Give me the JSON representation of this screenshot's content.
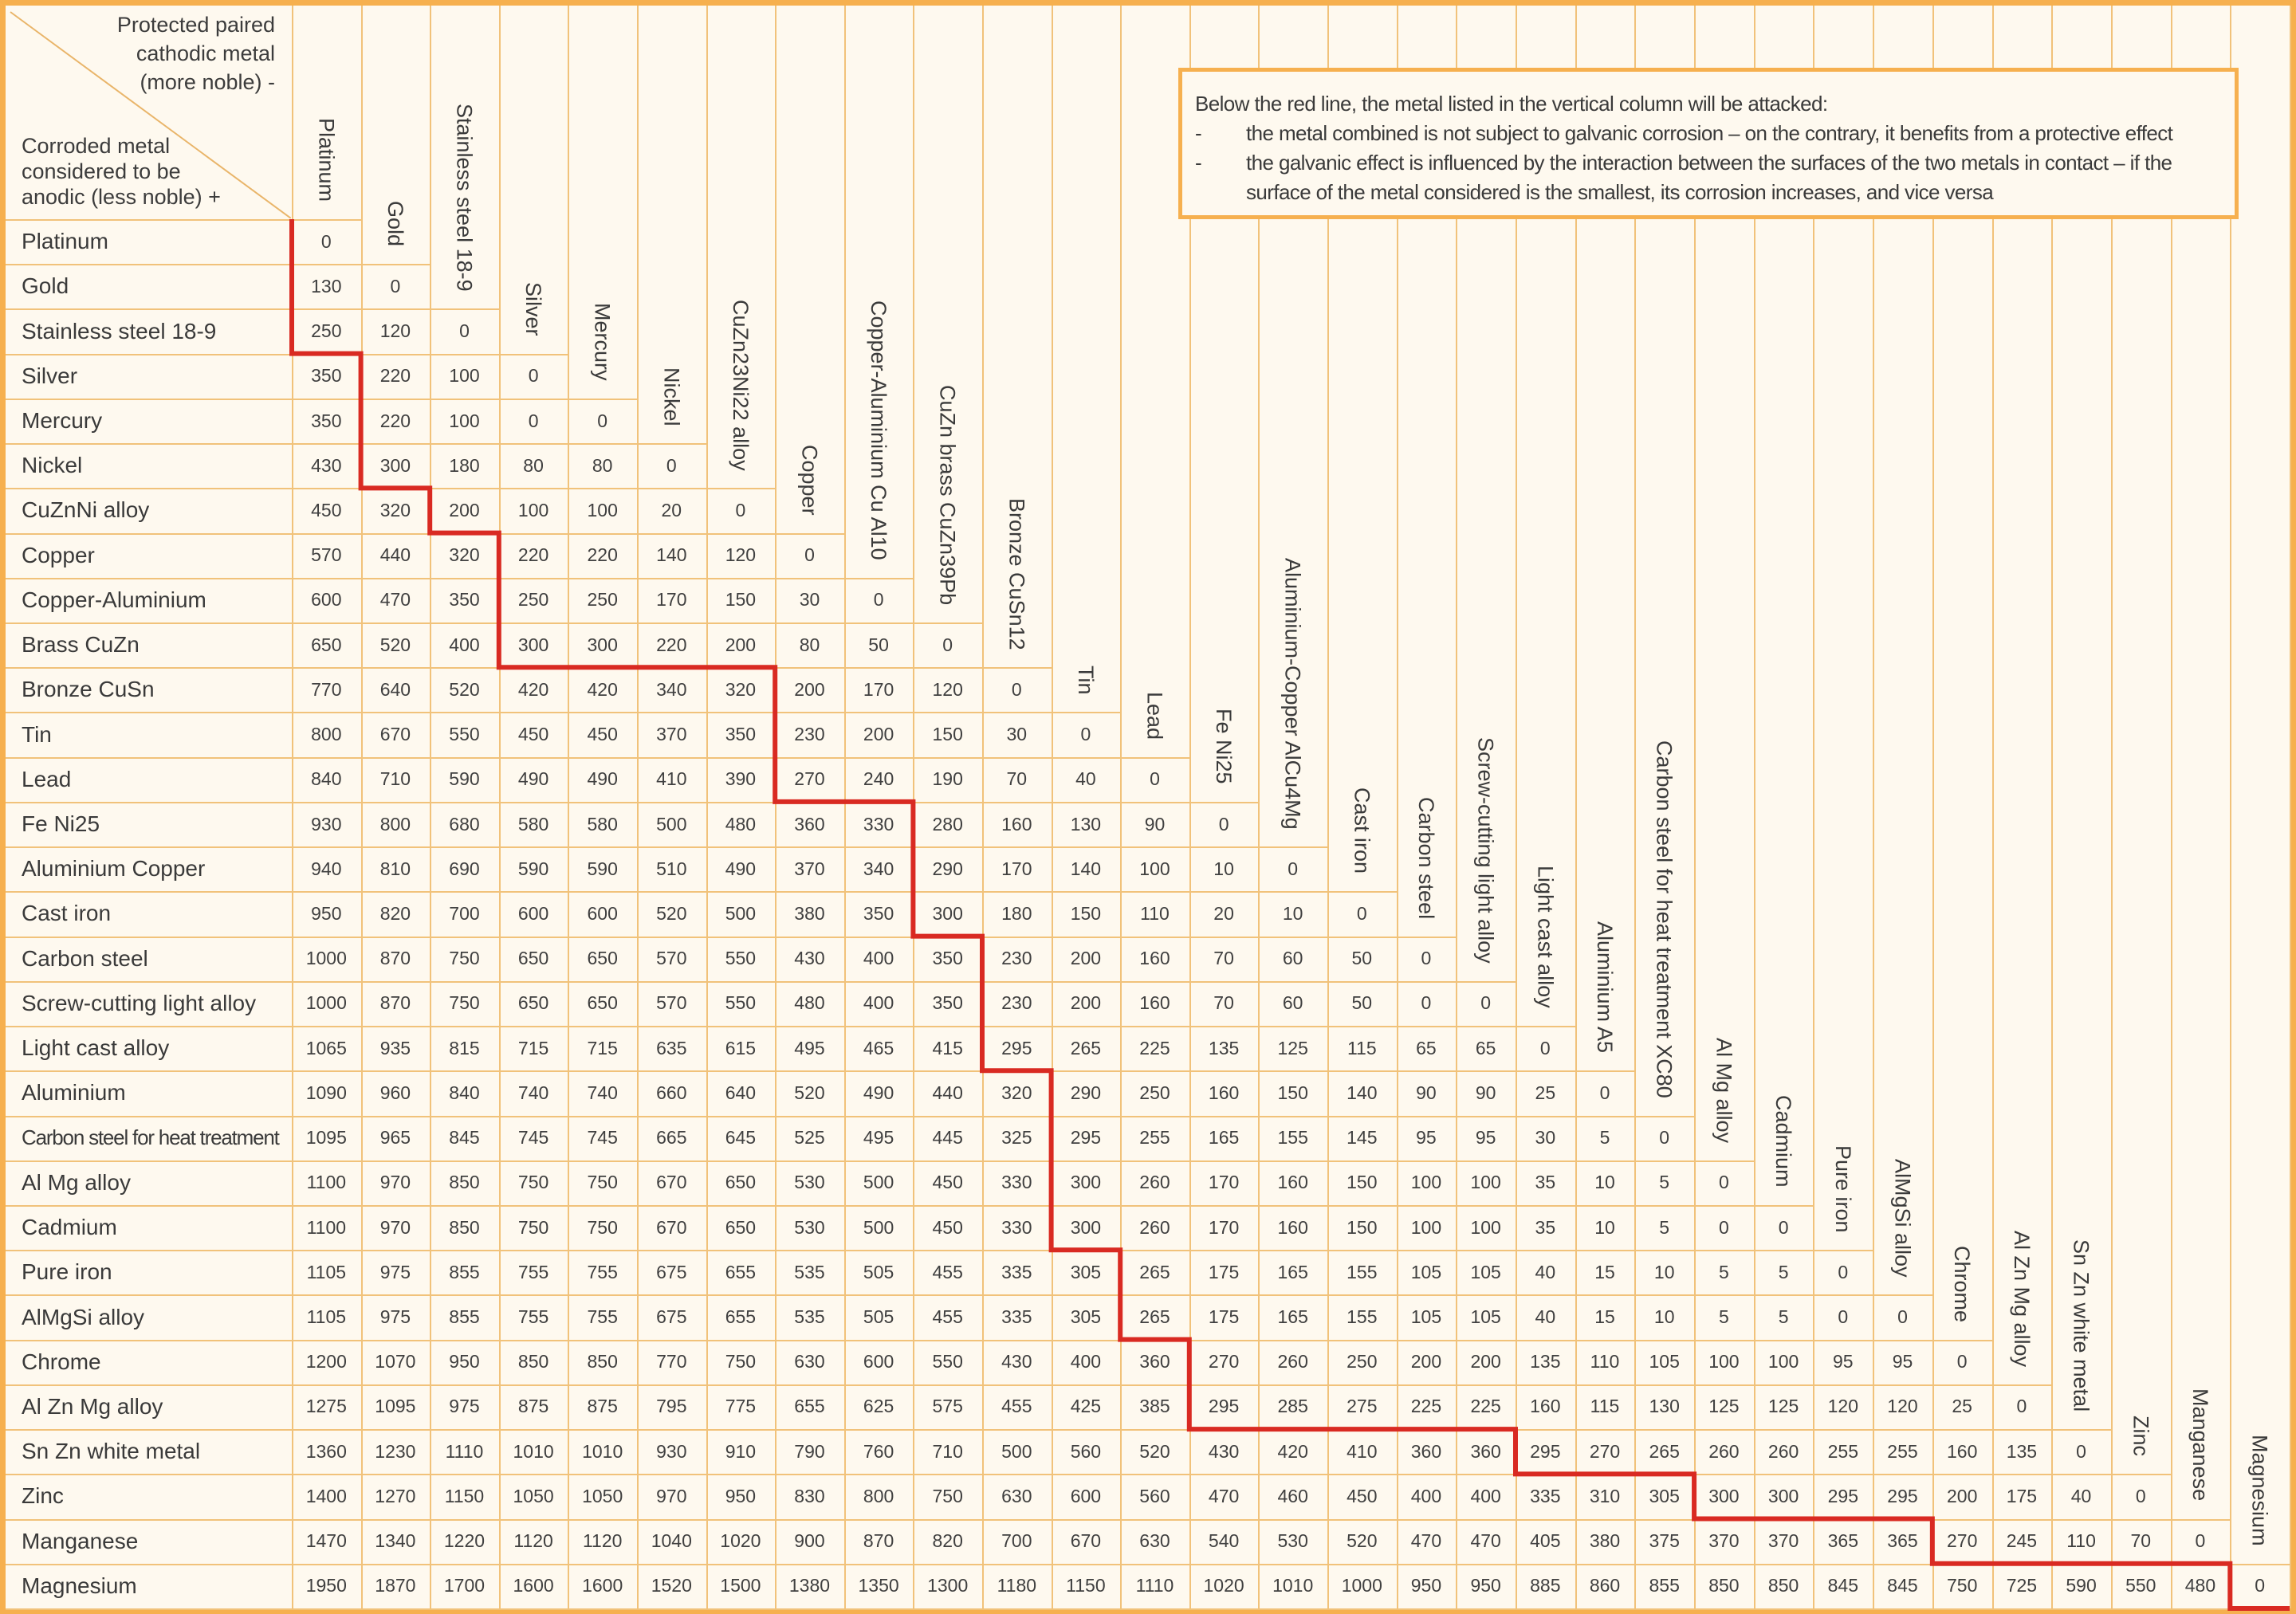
{
  "corner": {
    "top_text": [
      "Protected paired",
      "cathodic metal",
      "(more noble) -"
    ],
    "bottom_text": [
      "Corroded metal",
      "considered to be",
      "anodic (less noble) +"
    ]
  },
  "note": {
    "heading": "Below the red line, the metal listed in the vertical column will be attacked:",
    "bullets": [
      "the metal combined is not subject to galvanic corrosion – on the contrary, it benefits from a protective effect",
      "the galvanic effect is influenced by the interaction between the surfaces of the two metals in contact – if the surface of the metal considered is the smallest, its corrosion increases, and vice versa"
    ],
    "bullet_marker": "-"
  },
  "colors": {
    "border": "#f6b04f",
    "grid": "#f1c27a",
    "background": "#fef9ef",
    "red_line": "#d92a22",
    "text": "#3c3c3c"
  },
  "chart_data": {
    "type": "table",
    "title": "Galvanic corrosion potential difference between paired metals",
    "row_axis_label": "Corroded metal considered to be anodic (less noble) +",
    "column_axis_label": "Protected paired cathodic metal (more noble) -",
    "columns": [
      "Platinum",
      "Gold",
      "Stainless steel 18-9",
      "Silver",
      "Mercury",
      "Nickel",
      "CuZn23Ni22 alloy",
      "Copper",
      "Copper-Aluminium Cu Al10",
      "CuZn brass CuZn39Pb",
      "Bronze CuSn12",
      "Tin",
      "Lead",
      "Fe Ni25",
      "Aluminium-Copper AlCu4Mg",
      "Cast iron",
      "Carbon steel",
      "Screw-cutting light alloy",
      "Light cast alloy",
      "Aluminium A5",
      "Carbon steel for heat treatment XC80",
      "Al Mg alloy",
      "Cadmium",
      "Pure iron",
      "AlMgSi alloy",
      "Chrome",
      "Al Zn Mg alloy",
      "Sn Zn white metal",
      "Zinc",
      "Manganese",
      "Magnesium"
    ],
    "rows": [
      {
        "label": "Platinum",
        "values": [
          0
        ],
        "red_line_col": 0
      },
      {
        "label": "Gold",
        "values": [
          130,
          0
        ],
        "red_line_col": 0
      },
      {
        "label": "Stainless steel 18-9",
        "values": [
          250,
          120,
          0
        ],
        "red_line_col": 0
      },
      {
        "label": "Silver",
        "values": [
          350,
          220,
          100,
          0
        ],
        "red_line_col": 1
      },
      {
        "label": "Mercury",
        "values": [
          350,
          220,
          100,
          0,
          0
        ],
        "red_line_col": 1
      },
      {
        "label": "Nickel",
        "values": [
          430,
          300,
          180,
          80,
          80,
          0
        ],
        "red_line_col": 1
      },
      {
        "label": "CuZnNi alloy",
        "values": [
          450,
          320,
          200,
          100,
          100,
          20,
          0
        ],
        "red_line_col": 2
      },
      {
        "label": "Copper",
        "values": [
          570,
          440,
          320,
          220,
          220,
          140,
          120,
          0
        ],
        "red_line_col": 3
      },
      {
        "label": "Copper-Aluminium",
        "values": [
          600,
          470,
          350,
          250,
          250,
          170,
          150,
          30,
          0
        ],
        "red_line_col": 3
      },
      {
        "label": "Brass CuZn",
        "values": [
          650,
          520,
          400,
          300,
          300,
          220,
          200,
          80,
          50,
          0
        ],
        "red_line_col": 3
      },
      {
        "label": "Bronze CuSn",
        "values": [
          770,
          640,
          520,
          420,
          420,
          340,
          320,
          200,
          170,
          120,
          0
        ],
        "red_line_col": 7
      },
      {
        "label": "Tin",
        "values": [
          800,
          670,
          550,
          450,
          450,
          370,
          350,
          230,
          200,
          150,
          30,
          0
        ],
        "red_line_col": 7
      },
      {
        "label": "Lead",
        "values": [
          840,
          710,
          590,
          490,
          490,
          410,
          390,
          270,
          240,
          190,
          70,
          40,
          0
        ],
        "red_line_col": 7
      },
      {
        "label": "Fe Ni25",
        "values": [
          930,
          800,
          680,
          580,
          580,
          500,
          480,
          360,
          330,
          280,
          160,
          130,
          90,
          0
        ],
        "red_line_col": 9
      },
      {
        "label": "Aluminium Copper",
        "values": [
          940,
          810,
          690,
          590,
          590,
          510,
          490,
          370,
          340,
          290,
          170,
          140,
          100,
          10,
          0
        ],
        "red_line_col": 9
      },
      {
        "label": "Cast iron",
        "values": [
          950,
          820,
          700,
          600,
          600,
          520,
          500,
          380,
          350,
          300,
          180,
          150,
          110,
          20,
          10,
          0
        ],
        "red_line_col": 9
      },
      {
        "label": "Carbon steel",
        "values": [
          1000,
          870,
          750,
          650,
          650,
          570,
          550,
          430,
          400,
          350,
          230,
          200,
          160,
          70,
          60,
          50,
          0
        ],
        "red_line_col": 10
      },
      {
        "label": "Screw-cutting light alloy",
        "values": [
          1000,
          870,
          750,
          650,
          650,
          570,
          550,
          480,
          400,
          350,
          230,
          200,
          160,
          70,
          60,
          50,
          0,
          0
        ],
        "red_line_col": 10
      },
      {
        "label": "Light cast alloy",
        "values": [
          1065,
          935,
          815,
          715,
          715,
          635,
          615,
          495,
          465,
          415,
          295,
          265,
          225,
          135,
          125,
          115,
          65,
          65,
          0
        ],
        "red_line_col": 10
      },
      {
        "label": "Aluminium",
        "values": [
          1090,
          960,
          840,
          740,
          740,
          660,
          640,
          520,
          490,
          440,
          320,
          290,
          250,
          160,
          150,
          140,
          90,
          90,
          25,
          0
        ],
        "red_line_col": 11
      },
      {
        "label": "Carbon steel for heat treatment",
        "values": [
          1095,
          965,
          845,
          745,
          745,
          665,
          645,
          525,
          495,
          445,
          325,
          295,
          255,
          165,
          155,
          145,
          95,
          95,
          30,
          5,
          0
        ],
        "red_line_col": 11
      },
      {
        "label": "Al Mg alloy",
        "values": [
          1100,
          970,
          850,
          750,
          750,
          670,
          650,
          530,
          500,
          450,
          330,
          300,
          260,
          170,
          160,
          150,
          100,
          100,
          35,
          10,
          5,
          0
        ],
        "red_line_col": 11
      },
      {
        "label": "Cadmium",
        "values": [
          1100,
          970,
          850,
          750,
          750,
          670,
          650,
          530,
          500,
          450,
          330,
          300,
          260,
          170,
          160,
          150,
          100,
          100,
          35,
          10,
          5,
          0,
          0
        ],
        "red_line_col": 11
      },
      {
        "label": "Pure iron",
        "values": [
          1105,
          975,
          855,
          755,
          755,
          675,
          655,
          535,
          505,
          455,
          335,
          305,
          265,
          175,
          165,
          155,
          105,
          105,
          40,
          15,
          10,
          5,
          5,
          0
        ],
        "red_line_col": 12
      },
      {
        "label": "AlMgSi alloy",
        "values": [
          1105,
          975,
          855,
          755,
          755,
          675,
          655,
          535,
          505,
          455,
          335,
          305,
          265,
          175,
          165,
          155,
          105,
          105,
          40,
          15,
          10,
          5,
          5,
          0,
          0
        ],
        "red_line_col": 12
      },
      {
        "label": "Chrome",
        "values": [
          1200,
          1070,
          950,
          850,
          850,
          770,
          750,
          630,
          600,
          550,
          430,
          400,
          360,
          270,
          260,
          250,
          200,
          200,
          135,
          110,
          105,
          100,
          100,
          95,
          95,
          0
        ],
        "red_line_col": 13
      },
      {
        "label": "Al Zn Mg alloy",
        "values": [
          1275,
          1095,
          975,
          875,
          875,
          795,
          775,
          655,
          625,
          575,
          455,
          425,
          385,
          295,
          285,
          275,
          225,
          225,
          160,
          115,
          130,
          125,
          125,
          120,
          120,
          25,
          0
        ],
        "red_line_col": 13
      },
      {
        "label": "Sn Zn white metal",
        "values": [
          1360,
          1230,
          1110,
          1010,
          1010,
          930,
          910,
          790,
          760,
          710,
          500,
          560,
          520,
          430,
          420,
          410,
          360,
          360,
          295,
          270,
          265,
          260,
          260,
          255,
          255,
          160,
          135,
          0
        ],
        "red_line_col": 18
      },
      {
        "label": "Zinc",
        "values": [
          1400,
          1270,
          1150,
          1050,
          1050,
          970,
          950,
          830,
          800,
          750,
          630,
          600,
          560,
          470,
          460,
          450,
          400,
          400,
          335,
          310,
          305,
          300,
          300,
          295,
          295,
          200,
          175,
          40,
          0
        ],
        "red_line_col": 21
      },
      {
        "label": "Manganese",
        "values": [
          1470,
          1340,
          1220,
          1120,
          1120,
          1040,
          1020,
          900,
          870,
          820,
          700,
          670,
          630,
          540,
          530,
          520,
          470,
          470,
          405,
          380,
          375,
          370,
          370,
          365,
          365,
          270,
          245,
          110,
          70,
          0
        ],
        "red_line_col": 25
      },
      {
        "label": "Magnesium",
        "values": [
          1950,
          1870,
          1700,
          1600,
          1600,
          1520,
          1500,
          1380,
          1350,
          1300,
          1180,
          1150,
          1110,
          1020,
          1010,
          1000,
          950,
          950,
          885,
          860,
          855,
          850,
          850,
          845,
          845,
          750,
          725,
          590,
          550,
          480,
          0
        ],
        "red_line_col": 30
      }
    ]
  }
}
